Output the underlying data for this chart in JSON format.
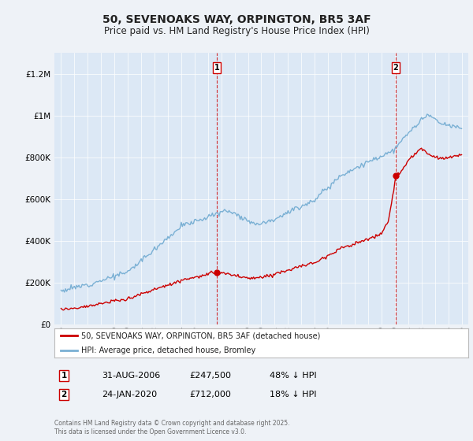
{
  "title": "50, SEVENOAKS WAY, ORPINGTON, BR5 3AF",
  "subtitle": "Price paid vs. HM Land Registry's House Price Index (HPI)",
  "background_color": "#eef2f7",
  "plot_bg_color": "#dce8f5",
  "sale1": {
    "date_num": 2006.67,
    "price": 247500,
    "label": "1",
    "text": "31-AUG-2006",
    "amount": "£247,500",
    "pct": "48% ↓ HPI"
  },
  "sale2": {
    "date_num": 2020.07,
    "price": 712000,
    "label": "2",
    "text": "24-JAN-2020",
    "amount": "£712,000",
    "pct": "18% ↓ HPI"
  },
  "red_line_color": "#cc0000",
  "blue_line_color": "#7ab0d4",
  "sale_dot_color": "#cc0000",
  "vline_color": "#cc0000",
  "ylim": [
    0,
    1300000
  ],
  "xlim": [
    1994.5,
    2025.5
  ],
  "legend_red": "50, SEVENOAKS WAY, ORPINGTON, BR5 3AF (detached house)",
  "legend_blue": "HPI: Average price, detached house, Bromley",
  "footnote": "Contains HM Land Registry data © Crown copyright and database right 2025.\nThis data is licensed under the Open Government Licence v3.0.",
  "yticks": [
    0,
    200000,
    400000,
    600000,
    800000,
    1000000,
    1200000
  ],
  "ytick_labels": [
    "£0",
    "£200K",
    "£400K",
    "£600K",
    "£800K",
    "£1M",
    "£1.2M"
  ]
}
